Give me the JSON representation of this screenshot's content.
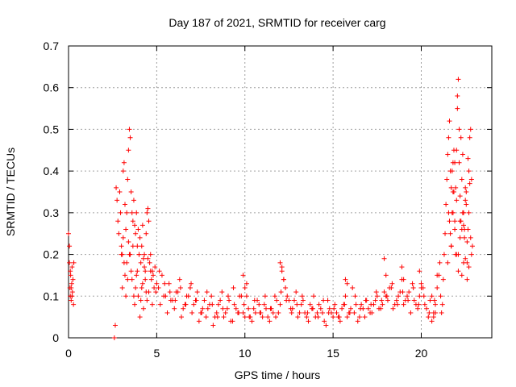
{
  "chart_data": {
    "type": "scatter",
    "title": "Day 187 of 2021, SRMTID for receiver carg",
    "xlabel": "GPS time / hours",
    "ylabel": "SRMTID / TECUs",
    "xlim": [
      0,
      24
    ],
    "ylim": [
      0,
      0.7
    ],
    "xticks": [
      0,
      5,
      10,
      15,
      20
    ],
    "xtick_labels": [
      "0",
      "5",
      "10",
      "15",
      "20"
    ],
    "yticks": [
      0,
      0.1,
      0.2,
      0.3,
      0.4,
      0.5,
      0.6,
      0.7
    ],
    "ytick_labels": [
      "0",
      "0.1",
      "0.2",
      "0.3",
      "0.4",
      "0.5",
      "0.6",
      "0.7"
    ],
    "grid": true,
    "marker": "+",
    "series": [
      {
        "name": "SRMTID",
        "color": "#ff0000",
        "x": [
          0.0,
          0.05,
          0.08,
          0.1,
          0.12,
          0.15,
          0.18,
          0.2,
          0.22,
          0.25,
          0.28,
          0.3,
          0.05,
          0.1,
          0.15,
          0.2,
          2.6,
          2.65,
          2.7,
          2.75,
          2.8,
          2.85,
          2.9,
          2.95,
          3.0,
          3.05,
          3.1,
          3.15,
          3.2,
          3.25,
          3.3,
          3.35,
          3.4,
          3.45,
          3.5,
          3.55,
          3.6,
          3.65,
          3.7,
          3.75,
          3.8,
          3.85,
          3.9,
          3.95,
          4.0,
          4.05,
          4.1,
          4.15,
          4.2,
          4.25,
          4.3,
          4.35,
          4.4,
          4.45,
          4.5,
          4.55,
          4.6,
          4.65,
          4.7,
          4.75,
          4.8,
          4.85,
          4.9,
          4.95,
          5.0,
          3.0,
          3.1,
          3.2,
          3.3,
          3.4,
          3.5,
          3.6,
          3.7,
          3.8,
          3.9,
          4.0,
          4.1,
          4.2,
          4.3,
          4.4,
          4.5,
          3.05,
          3.15,
          3.25,
          3.35,
          3.45,
          3.55,
          3.65,
          3.75,
          3.85,
          3.95,
          4.05,
          4.15,
          4.25,
          4.35,
          4.45,
          4.55,
          4.65,
          4.75,
          5.1,
          5.3,
          5.5,
          5.7,
          5.9,
          6.1,
          6.3,
          6.5,
          6.7,
          6.9,
          7.1,
          7.3,
          7.5,
          7.7,
          7.9,
          8.1,
          8.3,
          8.5,
          8.7,
          8.9,
          9.1,
          9.3,
          9.5,
          9.7,
          9.9,
          10.1,
          10.3,
          10.5,
          10.7,
          10.9,
          11.1,
          11.3,
          11.5,
          11.7,
          11.9,
          12.1,
          12.3,
          12.5,
          12.7,
          12.9,
          13.1,
          13.3,
          13.5,
          13.7,
          13.9,
          14.1,
          14.3,
          14.5,
          14.7,
          14.9,
          15.1,
          15.3,
          15.5,
          15.7,
          15.9,
          16.1,
          16.3,
          16.5,
          16.7,
          16.9,
          17.1,
          17.3,
          17.5,
          17.7,
          17.9,
          18.1,
          18.3,
          18.5,
          18.7,
          18.9,
          19.1,
          19.3,
          19.5,
          19.7,
          19.9,
          20.1,
          20.3,
          20.5,
          20.7,
          20.9,
          5.2,
          5.4,
          5.6,
          5.8,
          6.0,
          6.2,
          6.4,
          6.6,
          6.8,
          7.0,
          7.2,
          7.4,
          7.6,
          7.8,
          8.0,
          8.2,
          8.4,
          8.6,
          8.8,
          9.0,
          9.2,
          9.4,
          9.6,
          9.8,
          10.0,
          10.2,
          10.4,
          10.6,
          10.8,
          11.0,
          11.2,
          11.4,
          11.6,
          11.8,
          12.0,
          12.2,
          12.4,
          12.6,
          12.8,
          13.0,
          13.2,
          13.4,
          13.6,
          13.8,
          14.0,
          14.2,
          14.4,
          14.6,
          14.8,
          15.0,
          15.2,
          15.4,
          15.6,
          15.8,
          16.0,
          16.2,
          16.4,
          16.6,
          16.8,
          17.0,
          17.2,
          17.4,
          17.6,
          17.8,
          18.0,
          18.2,
          18.4,
          18.6,
          18.8,
          19.0,
          19.2,
          19.4,
          19.6,
          19.8,
          20.0,
          20.2,
          20.4,
          20.6,
          20.8,
          5.15,
          5.45,
          5.75,
          6.05,
          6.35,
          6.65,
          6.95,
          7.25,
          7.55,
          7.85,
          8.15,
          8.45,
          8.75,
          9.05,
          9.35,
          9.65,
          9.95,
          10.25,
          10.55,
          10.85,
          11.15,
          11.45,
          11.75,
          12.05,
          12.35,
          12.65,
          12.95,
          13.25,
          13.55,
          13.85,
          14.15,
          14.45,
          14.75,
          15.05,
          15.35,
          15.65,
          15.95,
          16.25,
          16.55,
          16.85,
          17.15,
          17.45,
          17.75,
          18.05,
          18.35,
          18.65,
          18.95,
          19.25,
          19.55,
          19.85,
          20.15,
          20.45,
          20.75,
          9.9,
          10.0,
          10.1,
          12.0,
          12.1,
          12.2,
          15.7,
          15.8,
          17.9,
          18.0,
          18.9,
          19.0,
          19.9,
          20.0,
          20.6,
          20.7,
          20.8,
          20.9,
          21.0,
          21.05,
          21.1,
          21.15,
          21.2,
          21.25,
          21.3,
          21.35,
          21.4,
          21.45,
          21.5,
          21.55,
          21.6,
          21.65,
          21.7,
          21.75,
          21.8,
          21.85,
          21.9,
          21.95,
          22.0,
          22.05,
          22.1,
          22.15,
          22.2,
          22.25,
          22.3,
          22.35,
          22.4,
          22.45,
          22.5,
          22.55,
          22.6,
          22.65,
          22.7,
          22.75,
          22.8,
          22.85,
          22.9,
          21.5,
          21.6,
          21.7,
          21.8,
          21.9,
          22.0,
          22.1,
          22.2,
          22.3,
          22.4,
          22.5,
          22.6,
          22.7,
          21.55,
          21.65,
          21.75,
          21.85,
          21.95,
          22.05,
          22.15,
          22.25,
          22.35,
          22.45,
          22.55,
          22.65,
          22.75,
          22.85,
          21.7,
          21.8,
          21.9,
          22.0,
          22.1,
          22.2,
          22.3,
          22.4,
          22.5,
          22.6,
          22.7,
          22.8
        ],
        "y": [
          0.25,
          0.18,
          0.12,
          0.1,
          0.15,
          0.09,
          0.13,
          0.17,
          0.11,
          0.14,
          0.08,
          0.18,
          0.22,
          0.16,
          0.12,
          0.1,
          0.0,
          0.03,
          0.36,
          0.33,
          0.28,
          0.25,
          0.35,
          0.3,
          0.22,
          0.2,
          0.4,
          0.42,
          0.32,
          0.26,
          0.3,
          0.38,
          0.45,
          0.5,
          0.48,
          0.35,
          0.3,
          0.28,
          0.33,
          0.27,
          0.25,
          0.3,
          0.22,
          0.26,
          0.2,
          0.24,
          0.18,
          0.22,
          0.27,
          0.19,
          0.2,
          0.16,
          0.25,
          0.3,
          0.31,
          0.28,
          0.18,
          0.2,
          0.14,
          0.16,
          0.15,
          0.12,
          0.17,
          0.11,
          0.13,
          0.2,
          0.24,
          0.15,
          0.18,
          0.23,
          0.2,
          0.14,
          0.1,
          0.12,
          0.16,
          0.2,
          0.09,
          0.13,
          0.17,
          0.11,
          0.19,
          0.12,
          0.18,
          0.1,
          0.14,
          0.2,
          0.16,
          0.22,
          0.08,
          0.15,
          0.1,
          0.05,
          0.12,
          0.07,
          0.14,
          0.09,
          0.11,
          0.16,
          0.08,
          0.12,
          0.15,
          0.1,
          0.13,
          0.09,
          0.11,
          0.14,
          0.07,
          0.1,
          0.12,
          0.08,
          0.11,
          0.06,
          0.09,
          0.07,
          0.1,
          0.05,
          0.08,
          0.11,
          0.06,
          0.09,
          0.04,
          0.07,
          0.1,
          0.06,
          0.13,
          0.05,
          0.07,
          0.09,
          0.06,
          0.08,
          0.05,
          0.07,
          0.1,
          0.06,
          0.17,
          0.12,
          0.09,
          0.07,
          0.11,
          0.06,
          0.09,
          0.05,
          0.08,
          0.1,
          0.06,
          0.07,
          0.04,
          0.09,
          0.06,
          0.08,
          0.05,
          0.07,
          0.1,
          0.06,
          0.12,
          0.08,
          0.05,
          0.07,
          0.09,
          0.06,
          0.08,
          0.1,
          0.07,
          0.11,
          0.09,
          0.12,
          0.08,
          0.1,
          0.14,
          0.09,
          0.11,
          0.13,
          0.08,
          0.1,
          0.12,
          0.07,
          0.09,
          0.06,
          0.15,
          0.08,
          0.1,
          0.06,
          0.09,
          0.07,
          0.11,
          0.05,
          0.08,
          0.1,
          0.06,
          0.09,
          0.04,
          0.07,
          0.05,
          0.08,
          0.03,
          0.06,
          0.09,
          0.05,
          0.07,
          0.04,
          0.08,
          0.06,
          0.1,
          0.05,
          0.07,
          0.04,
          0.06,
          0.08,
          0.05,
          0.07,
          0.04,
          0.06,
          0.09,
          0.08,
          0.14,
          0.1,
          0.07,
          0.09,
          0.05,
          0.08,
          0.06,
          0.04,
          0.07,
          0.05,
          0.08,
          0.06,
          0.03,
          0.07,
          0.05,
          0.06,
          0.04,
          0.08,
          0.05,
          0.07,
          0.06,
          0.04,
          0.08,
          0.05,
          0.07,
          0.06,
          0.09,
          0.07,
          0.08,
          0.1,
          0.12,
          0.07,
          0.09,
          0.11,
          0.08,
          0.1,
          0.06,
          0.09,
          0.07,
          0.12,
          0.08,
          0.05,
          0.04,
          0.06,
          0.16,
          0.13,
          0.11,
          0.09,
          0.12,
          0.08,
          0.13,
          0.09,
          0.06,
          0.11,
          0.08,
          0.05,
          0.07,
          0.1,
          0.12,
          0.06,
          0.08,
          0.05,
          0.09,
          0.06,
          0.1,
          0.07,
          0.05,
          0.11,
          0.09,
          0.06,
          0.08,
          0.1,
          0.06,
          0.07,
          0.05,
          0.09,
          0.06,
          0.07,
          0.05,
          0.08,
          0.06,
          0.1,
          0.07,
          0.09,
          0.08,
          0.11,
          0.09,
          0.1,
          0.13,
          0.08,
          0.11,
          0.09,
          0.12,
          0.08,
          0.1,
          0.06,
          0.09,
          0.15,
          0.12,
          0.1,
          0.18,
          0.16,
          0.14,
          0.14,
          0.13,
          0.19,
          0.15,
          0.17,
          0.14,
          0.16,
          0.13,
          0.1,
          0.05,
          0.08,
          0.12,
          0.15,
          0.18,
          0.1,
          0.06,
          0.08,
          0.14,
          0.2,
          0.25,
          0.32,
          0.38,
          0.44,
          0.48,
          0.52,
          0.4,
          0.36,
          0.3,
          0.42,
          0.35,
          0.28,
          0.2,
          0.45,
          0.55,
          0.62,
          0.5,
          0.34,
          0.28,
          0.38,
          0.44,
          0.3,
          0.24,
          0.36,
          0.32,
          0.18,
          0.26,
          0.4,
          0.48,
          0.5,
          0.38,
          0.22,
          0.18,
          0.28,
          0.22,
          0.3,
          0.26,
          0.33,
          0.2,
          0.24,
          0.15,
          0.27,
          0.19,
          0.23,
          0.17,
          0.3,
          0.25,
          0.4,
          0.45,
          0.36,
          0.58,
          0.42,
          0.48,
          0.3,
          0.26,
          0.35,
          0.43,
          0.37,
          0.2,
          0.22,
          0.35,
          0.42,
          0.2,
          0.16,
          0.28,
          0.26,
          0.18,
          0.33,
          0.14,
          0.3,
          0.24
        ]
      }
    ]
  }
}
